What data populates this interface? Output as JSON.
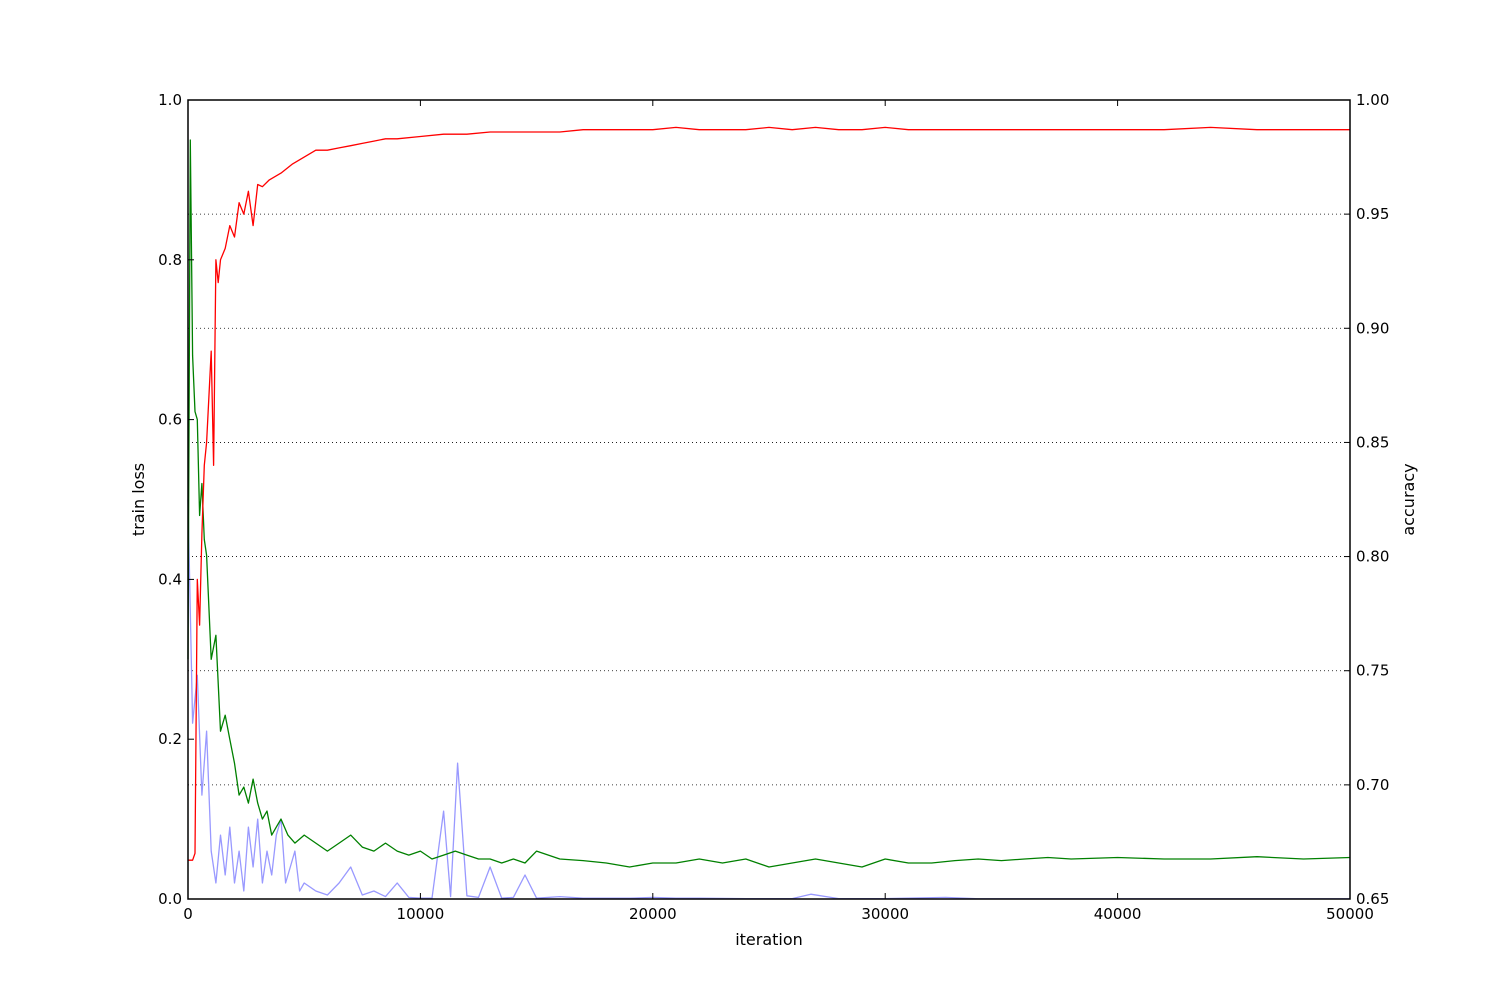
{
  "chart_data": {
    "type": "line",
    "title": "",
    "xlabel": "iteration",
    "ylabel": "train loss",
    "y2label": "accuracy",
    "xlim": [
      0,
      50000
    ],
    "ylim": [
      0,
      1.0
    ],
    "y2lim": [
      0.65,
      1.0
    ],
    "grid": "horizontal dotted (right axis ticks)",
    "x_ticks": [
      0,
      10000,
      20000,
      30000,
      40000,
      50000
    ],
    "x_tick_labels": [
      "0",
      "10000",
      "20000",
      "30000",
      "40000",
      "50000"
    ],
    "y_ticks": [
      0.0,
      0.2,
      0.4,
      0.6,
      0.8,
      1.0
    ],
    "y_tick_labels": [
      "0.0",
      "0.2",
      "0.4",
      "0.6",
      "0.8",
      "1.0"
    ],
    "y2_ticks": [
      0.65,
      0.7,
      0.75,
      0.8,
      0.85,
      0.9,
      0.95,
      1.0
    ],
    "y2_tick_labels": [
      "0.65",
      "0.70",
      "0.75",
      "0.80",
      "0.85",
      "0.90",
      "0.95",
      "1.00"
    ],
    "series": [
      {
        "color": "#9999ff",
        "axis": "left",
        "x": [
          0,
          200,
          400,
          600,
          800,
          1000,
          1200,
          1400,
          1600,
          1800,
          2000,
          2200,
          2400,
          2600,
          2800,
          3000,
          3200,
          3400,
          3600,
          3800,
          4000,
          4200,
          4400,
          4600,
          4800,
          5000,
          5500,
          6000,
          6500,
          7000,
          7500,
          8000,
          8500,
          9000,
          9500,
          10000,
          10500,
          11000,
          11300,
          11600,
          12000,
          12500,
          13000,
          13500,
          14000,
          14500,
          15000,
          16000,
          17000,
          18000,
          19000,
          20000,
          21000,
          22000,
          24000,
          26000,
          26800,
          28000,
          30000,
          32600,
          34000,
          50000
        ],
        "y": [
          0.5,
          0.22,
          0.28,
          0.13,
          0.21,
          0.06,
          0.02,
          0.08,
          0.03,
          0.09,
          0.02,
          0.06,
          0.01,
          0.09,
          0.04,
          0.1,
          0.02,
          0.06,
          0.03,
          0.08,
          0.1,
          0.02,
          0.04,
          0.06,
          0.01,
          0.02,
          0.01,
          0.005,
          0.02,
          0.04,
          0.005,
          0.01,
          0.003,
          0.02,
          0.002,
          0.001,
          0.001,
          0.11,
          0.003,
          0.17,
          0.004,
          0.002,
          0.04,
          0.001,
          0.002,
          0.03,
          0.001,
          0.003,
          0.001,
          0.001,
          0.001,
          0.002,
          0.001,
          0.001,
          0.0005,
          0.0005,
          0.006,
          0.0005,
          0.0005,
          0.002,
          0.0003,
          0.0002
        ]
      },
      {
        "color": "#008000",
        "axis": "left",
        "x": [
          0,
          100,
          200,
          300,
          400,
          500,
          600,
          700,
          800,
          1000,
          1200,
          1400,
          1600,
          1800,
          2000,
          2200,
          2400,
          2600,
          2800,
          3000,
          3200,
          3400,
          3600,
          3800,
          4000,
          4300,
          4600,
          5000,
          5500,
          6000,
          6500,
          7000,
          7500,
          8000,
          8500,
          9000,
          9500,
          10000,
          10500,
          11000,
          11500,
          12000,
          12500,
          13000,
          13500,
          14000,
          14500,
          15000,
          16000,
          17000,
          18000,
          19000,
          20000,
          21000,
          22000,
          23000,
          24000,
          25000,
          26000,
          27000,
          28000,
          29000,
          30000,
          31000,
          32000,
          33000,
          34000,
          35000,
          36000,
          37000,
          38000,
          40000,
          42000,
          44000,
          46000,
          48000,
          50000
        ],
        "y": [
          0.3,
          0.95,
          0.68,
          0.61,
          0.6,
          0.48,
          0.52,
          0.45,
          0.43,
          0.3,
          0.33,
          0.21,
          0.23,
          0.2,
          0.17,
          0.13,
          0.14,
          0.12,
          0.15,
          0.12,
          0.1,
          0.11,
          0.08,
          0.09,
          0.1,
          0.08,
          0.07,
          0.08,
          0.07,
          0.06,
          0.07,
          0.08,
          0.065,
          0.06,
          0.07,
          0.06,
          0.055,
          0.06,
          0.05,
          0.055,
          0.06,
          0.055,
          0.05,
          0.05,
          0.045,
          0.05,
          0.045,
          0.06,
          0.05,
          0.048,
          0.045,
          0.04,
          0.045,
          0.045,
          0.05,
          0.045,
          0.05,
          0.04,
          0.045,
          0.05,
          0.045,
          0.04,
          0.05,
          0.045,
          0.045,
          0.048,
          0.05,
          0.048,
          0.05,
          0.052,
          0.05,
          0.052,
          0.05,
          0.05,
          0.053,
          0.05,
          0.052
        ]
      },
      {
        "color": "#ff0000",
        "axis": "right",
        "x": [
          0,
          200,
          300,
          400,
          500,
          600,
          700,
          800,
          900,
          1000,
          1100,
          1200,
          1300,
          1400,
          1600,
          1800,
          2000,
          2200,
          2400,
          2600,
          2800,
          3000,
          3200,
          3500,
          4000,
          4500,
          5000,
          5500,
          6000,
          6500,
          7000,
          7500,
          8000,
          8500,
          9000,
          10000,
          11000,
          12000,
          13000,
          14000,
          15000,
          16000,
          17000,
          18000,
          19000,
          20000,
          21000,
          22000,
          23000,
          24000,
          25000,
          26000,
          27000,
          28000,
          29000,
          30000,
          31000,
          32000,
          34000,
          36000,
          38000,
          40000,
          42000,
          44000,
          46000,
          48000,
          50000
        ],
        "y": [
          0.667,
          0.667,
          0.67,
          0.79,
          0.77,
          0.81,
          0.84,
          0.85,
          0.87,
          0.89,
          0.84,
          0.93,
          0.92,
          0.93,
          0.935,
          0.945,
          0.94,
          0.955,
          0.95,
          0.96,
          0.945,
          0.963,
          0.962,
          0.965,
          0.968,
          0.972,
          0.975,
          0.978,
          0.978,
          0.979,
          0.98,
          0.981,
          0.982,
          0.983,
          0.983,
          0.984,
          0.985,
          0.985,
          0.986,
          0.986,
          0.986,
          0.986,
          0.987,
          0.987,
          0.987,
          0.987,
          0.988,
          0.987,
          0.987,
          0.987,
          0.988,
          0.987,
          0.988,
          0.987,
          0.987,
          0.988,
          0.987,
          0.987,
          0.987,
          0.987,
          0.987,
          0.987,
          0.987,
          0.988,
          0.987,
          0.987,
          0.987
        ]
      }
    ]
  }
}
